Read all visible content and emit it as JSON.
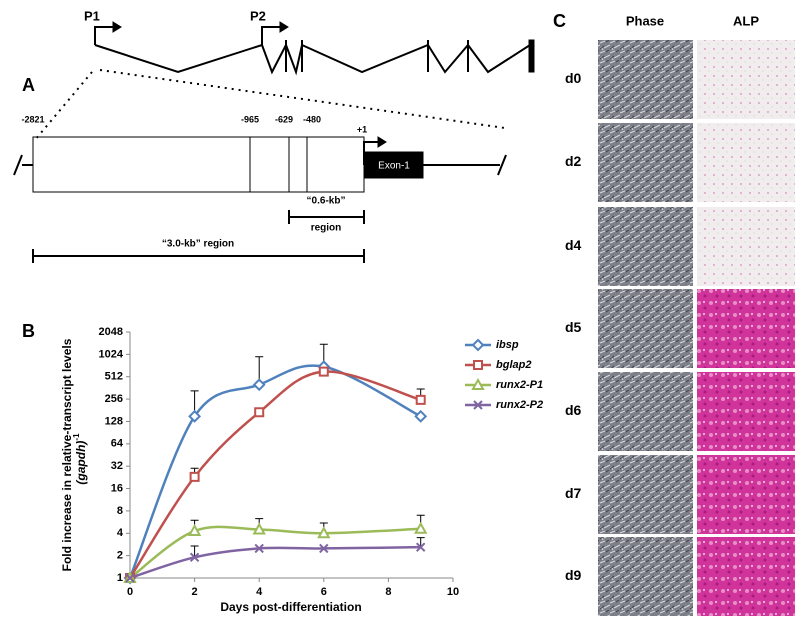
{
  "panel_a": {
    "label": "A",
    "promoters": [
      "P1",
      "P2"
    ],
    "positions": [
      "-2821",
      "-965",
      "-629",
      "-480",
      "+1"
    ],
    "exon": "Exon-1",
    "regions": [
      [
        "“0.6-kb”",
        "region"
      ],
      [
        "“3.0-kb” region"
      ]
    ]
  },
  "chart_data": {
    "type": "line",
    "label": "B",
    "x_label": "Days post-differentiation",
    "y_label": "Fold increase in relative-transcript levels",
    "y_label_2": "(gapdh)",
    "y_label_sup": "-1",
    "x": [
      0,
      2,
      4,
      6,
      9
    ],
    "xlim": [
      0,
      10
    ],
    "xticks": [
      0,
      2,
      4,
      6,
      8,
      10
    ],
    "ylim": [
      1,
      2048
    ],
    "yticks": [
      1,
      2,
      4,
      8,
      16,
      32,
      64,
      128,
      256,
      512,
      1024,
      2048
    ],
    "log_scale_y": true,
    "grid": false,
    "legend": "right",
    "series": [
      {
        "name": "ibsp",
        "color": "#4f81bd",
        "marker": "diamond",
        "values": [
          1,
          150,
          400,
          700,
          150
        ],
        "errors": [
          null,
          180,
          550,
          700,
          null
        ]
      },
      {
        "name": "bglap2",
        "color": "#c0504d",
        "marker": "square",
        "values": [
          1,
          23,
          170,
          600,
          250
        ],
        "errors": [
          null,
          7,
          null,
          null,
          100
        ]
      },
      {
        "name": "runx2-P1",
        "color": "#9bbb59",
        "marker": "triangle",
        "values": [
          1,
          4.3,
          4.5,
          4,
          4.6
        ],
        "errors": [
          null,
          1.7,
          1.8,
          1.5,
          2.4
        ]
      },
      {
        "name": "runx2-P2",
        "color": "#8064a2",
        "marker": "x",
        "values": [
          1,
          1.9,
          2.5,
          2.5,
          2.6
        ],
        "errors": [
          null,
          0.8,
          null,
          null,
          0.9
        ]
      }
    ]
  },
  "panel_c": {
    "label": "C",
    "columns": [
      "Phase",
      "ALP"
    ],
    "rows": [
      "d0",
      "d2",
      "d4",
      "d5",
      "d6",
      "d7",
      "d9"
    ]
  }
}
